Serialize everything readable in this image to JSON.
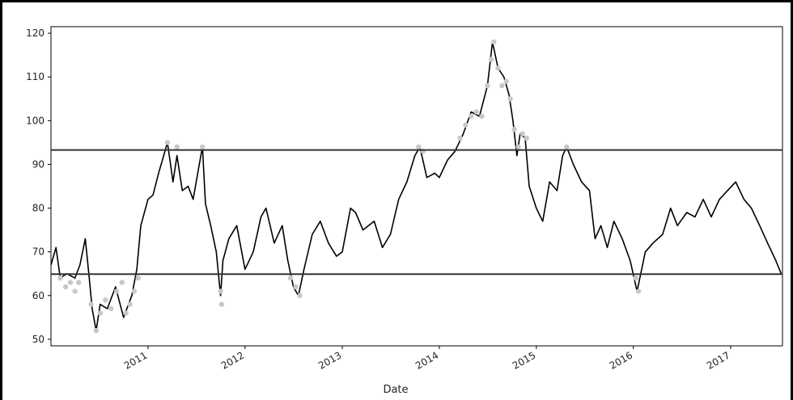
{
  "chart_data": {
    "type": "line",
    "title": "",
    "xlabel": "Date",
    "ylabel": "",
    "xlim": [
      "2010-01-01",
      "2017-07-15"
    ],
    "ylim": [
      48.5,
      121.5
    ],
    "y_ticks": [
      50,
      60,
      70,
      80,
      90,
      100,
      110,
      120
    ],
    "x_ticks": [
      "2011-01-01",
      "2012-01-01",
      "2013-01-01",
      "2014-01-01",
      "2015-01-01",
      "2016-01-01",
      "2017-01-01"
    ],
    "x_tick_labels": [
      "2011",
      "2012",
      "2013",
      "2014",
      "2015",
      "2016",
      "2017"
    ],
    "grid": false,
    "horizontal_lines": [
      93.3,
      64.9
    ],
    "series": [
      {
        "style": "line",
        "color": "#000000",
        "points": [
          [
            "2010-01-01",
            67
          ],
          [
            "2010-01-20",
            71
          ],
          [
            "2010-02-05",
            64
          ],
          [
            "2010-03-01",
            65
          ],
          [
            "2010-04-01",
            64
          ],
          [
            "2010-04-20",
            67
          ],
          [
            "2010-05-10",
            73
          ],
          [
            "2010-05-25",
            64
          ],
          [
            "2010-06-05",
            57
          ],
          [
            "2010-06-20",
            52
          ],
          [
            "2010-07-05",
            58
          ],
          [
            "2010-08-01",
            57
          ],
          [
            "2010-09-01",
            62
          ],
          [
            "2010-10-01",
            55
          ],
          [
            "2010-11-01",
            60
          ],
          [
            "2010-11-20",
            66
          ],
          [
            "2010-12-05",
            76
          ],
          [
            "2011-01-01",
            82
          ],
          [
            "2011-01-20",
            83
          ],
          [
            "2011-02-10",
            88
          ],
          [
            "2011-03-01",
            92
          ],
          [
            "2011-03-15",
            95
          ],
          [
            "2011-04-05",
            86
          ],
          [
            "2011-04-20",
            92
          ],
          [
            "2011-05-10",
            84
          ],
          [
            "2011-06-01",
            85
          ],
          [
            "2011-06-20",
            82
          ],
          [
            "2011-07-10",
            89
          ],
          [
            "2011-07-25",
            94
          ],
          [
            "2011-08-05",
            81
          ],
          [
            "2011-08-25",
            76
          ],
          [
            "2011-09-15",
            70
          ],
          [
            "2011-10-01",
            60
          ],
          [
            "2011-10-10",
            68
          ],
          [
            "2011-11-01",
            73
          ],
          [
            "2011-12-01",
            76
          ],
          [
            "2012-01-01",
            66
          ],
          [
            "2012-02-01",
            70
          ],
          [
            "2012-03-01",
            78
          ],
          [
            "2012-03-20",
            80
          ],
          [
            "2012-04-20",
            72
          ],
          [
            "2012-05-20",
            76
          ],
          [
            "2012-06-10",
            68
          ],
          [
            "2012-07-01",
            62
          ],
          [
            "2012-07-20",
            60
          ],
          [
            "2012-08-10",
            66
          ],
          [
            "2012-09-10",
            74
          ],
          [
            "2012-10-10",
            77
          ],
          [
            "2012-11-10",
            72
          ],
          [
            "2012-12-10",
            69
          ],
          [
            "2013-01-01",
            70
          ],
          [
            "2013-02-01",
            80
          ],
          [
            "2013-02-20",
            79
          ],
          [
            "2013-03-20",
            75
          ],
          [
            "2013-05-01",
            77
          ],
          [
            "2013-06-01",
            71
          ],
          [
            "2013-07-01",
            74
          ],
          [
            "2013-08-01",
            82
          ],
          [
            "2013-09-01",
            86
          ],
          [
            "2013-10-01",
            92
          ],
          [
            "2013-10-20",
            94
          ],
          [
            "2013-11-15",
            87
          ],
          [
            "2013-12-15",
            88
          ],
          [
            "2014-01-01",
            87
          ],
          [
            "2014-02-01",
            91
          ],
          [
            "2014-03-01",
            93
          ],
          [
            "2014-04-01",
            97
          ],
          [
            "2014-05-01",
            102
          ],
          [
            "2014-06-01",
            101
          ],
          [
            "2014-07-01",
            108
          ],
          [
            "2014-07-20",
            118
          ],
          [
            "2014-08-10",
            112
          ],
          [
            "2014-09-01",
            110
          ],
          [
            "2014-09-20",
            106
          ],
          [
            "2014-10-05",
            100
          ],
          [
            "2014-10-20",
            92
          ],
          [
            "2014-11-01",
            97
          ],
          [
            "2014-11-20",
            96
          ],
          [
            "2014-12-05",
            85
          ],
          [
            "2015-01-01",
            80
          ],
          [
            "2015-01-25",
            77
          ],
          [
            "2015-02-20",
            86
          ],
          [
            "2015-03-20",
            84
          ],
          [
            "2015-04-10",
            92
          ],
          [
            "2015-04-25",
            94
          ],
          [
            "2015-05-20",
            90
          ],
          [
            "2015-06-20",
            86
          ],
          [
            "2015-07-20",
            84
          ],
          [
            "2015-08-10",
            73
          ],
          [
            "2015-09-01",
            76
          ],
          [
            "2015-09-25",
            71
          ],
          [
            "2015-10-20",
            77
          ],
          [
            "2015-11-20",
            73
          ],
          [
            "2015-12-20",
            68
          ],
          [
            "2016-01-15",
            61
          ],
          [
            "2016-02-15",
            70
          ],
          [
            "2016-03-15",
            72
          ],
          [
            "2016-04-20",
            74
          ],
          [
            "2016-05-20",
            80
          ],
          [
            "2016-06-15",
            76
          ],
          [
            "2016-07-20",
            79
          ],
          [
            "2016-08-20",
            78
          ],
          [
            "2016-09-20",
            82
          ],
          [
            "2016-10-20",
            78
          ],
          [
            "2016-11-20",
            82
          ],
          [
            "2016-12-20",
            84
          ],
          [
            "2017-01-20",
            86
          ],
          [
            "2017-02-20",
            82
          ],
          [
            "2017-03-20",
            80
          ],
          [
            "2017-04-20",
            76
          ],
          [
            "2017-05-20",
            72
          ],
          [
            "2017-06-20",
            68
          ],
          [
            "2017-07-10",
            65
          ]
        ]
      },
      {
        "style": "markers",
        "color": "#c8c8c8",
        "points": [
          [
            "2010-02-05",
            64
          ],
          [
            "2010-02-25",
            62
          ],
          [
            "2010-03-15",
            63
          ],
          [
            "2010-04-01",
            61
          ],
          [
            "2010-04-15",
            63
          ],
          [
            "2010-06-01",
            58
          ],
          [
            "2010-06-20",
            52
          ],
          [
            "2010-07-05",
            56
          ],
          [
            "2010-07-25",
            59
          ],
          [
            "2010-08-15",
            57
          ],
          [
            "2010-09-05",
            61
          ],
          [
            "2010-09-25",
            63
          ],
          [
            "2010-10-10",
            56
          ],
          [
            "2010-10-25",
            58
          ],
          [
            "2010-11-10",
            61
          ],
          [
            "2010-11-25",
            64
          ],
          [
            "2011-03-15",
            95
          ],
          [
            "2011-04-20",
            94
          ],
          [
            "2011-07-25",
            94
          ],
          [
            "2011-10-01",
            61
          ],
          [
            "2011-10-05",
            58
          ],
          [
            "2012-06-20",
            64
          ],
          [
            "2012-07-10",
            62
          ],
          [
            "2012-07-25",
            60
          ],
          [
            "2013-10-15",
            94
          ],
          [
            "2013-11-01",
            93
          ],
          [
            "2014-03-20",
            96
          ],
          [
            "2014-04-10",
            99
          ],
          [
            "2014-05-01",
            101
          ],
          [
            "2014-05-20",
            102
          ],
          [
            "2014-06-10",
            101
          ],
          [
            "2014-07-01",
            108
          ],
          [
            "2014-07-15",
            114
          ],
          [
            "2014-07-25",
            118
          ],
          [
            "2014-08-10",
            112
          ],
          [
            "2014-08-25",
            108
          ],
          [
            "2014-09-10",
            109
          ],
          [
            "2014-09-25",
            105
          ],
          [
            "2014-10-10",
            98
          ],
          [
            "2014-10-25",
            94
          ],
          [
            "2014-11-10",
            97
          ],
          [
            "2014-11-25",
            96
          ],
          [
            "2015-04-25",
            94
          ],
          [
            "2016-01-10",
            64
          ],
          [
            "2016-01-20",
            61
          ]
        ]
      }
    ]
  }
}
